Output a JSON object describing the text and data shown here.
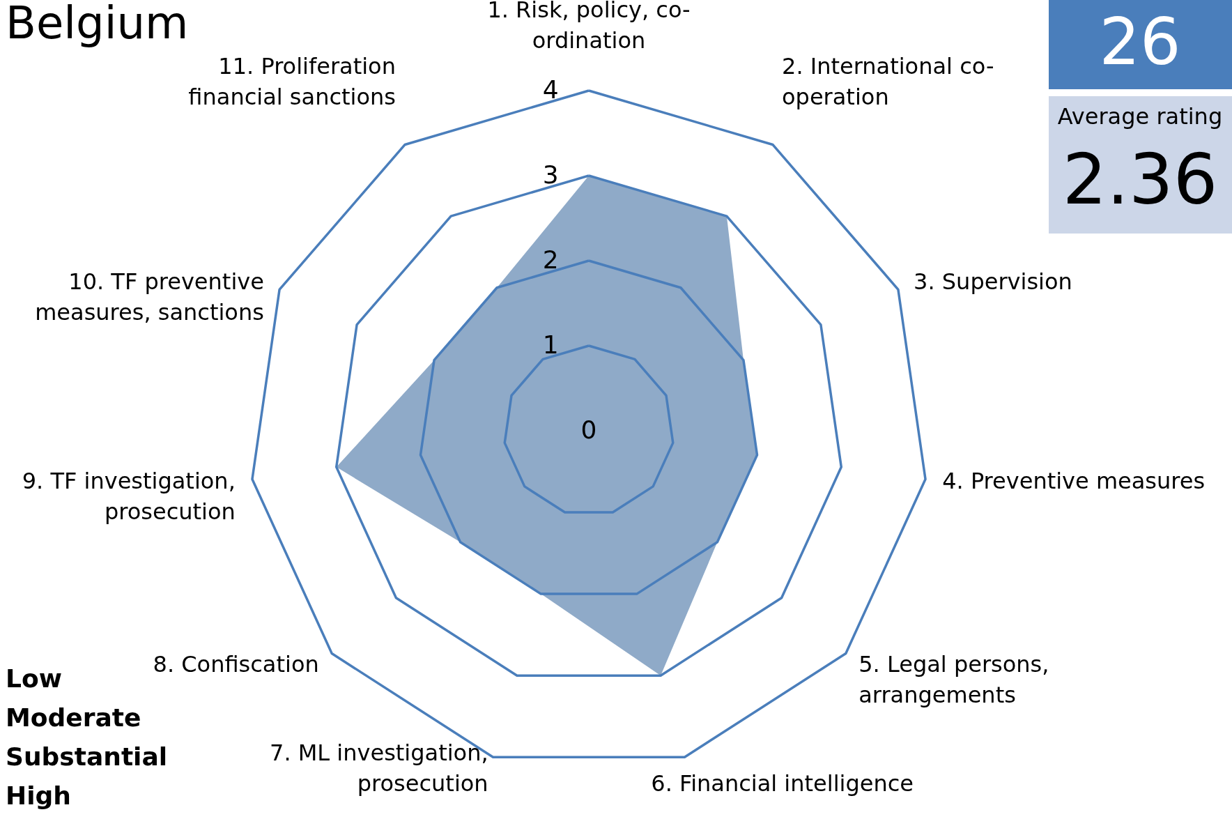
{
  "chart_data": {
    "type": "radar",
    "title": "Belgium",
    "categories": [
      "1. Risk, policy, co-ordination",
      "2. International co-operation",
      "3. Supervision",
      "4. Preventive measures",
      "5. Legal persons, arrangements",
      "6. Financial intelligence",
      "7. ML investigation, prosecution",
      "8. Confiscation",
      "9. TF investigation, prosecution",
      "10. TF preventive measures, sanctions",
      "11. Proliferation financial sanctions"
    ],
    "series": [
      {
        "color": "#8faac8",
        "values": [
          3,
          3,
          2,
          2,
          2,
          3,
          2,
          2,
          3,
          2,
          2
        ]
      }
    ],
    "ylim": [
      0,
      4
    ],
    "yticks": [
      0,
      1,
      2,
      3,
      4
    ],
    "grid": true,
    "annotations": [
      "26",
      "Average rating",
      "2.36",
      "Low",
      "Moderate",
      "Substantial",
      "High"
    ]
  }
}
